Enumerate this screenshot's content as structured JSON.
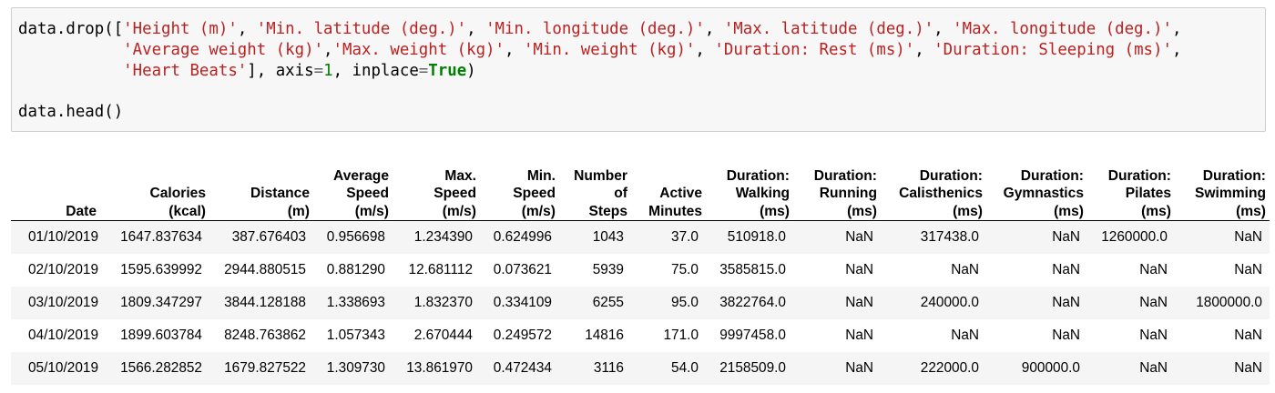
{
  "input_cell": {
    "code_lines": [
      [
        "data.drop([",
        "'Height (m)'",
        ", ",
        "'Min. latitude (deg.)'",
        ", ",
        "'Min. longitude (deg.)'",
        ", ",
        "'Max. latitude (deg.)'",
        ", ",
        "'Max. longitude (deg.)'",
        ","
      ],
      [
        "           ",
        "'Average weight (kg)'",
        ",",
        "'Max. weight (kg)'",
        ", ",
        "'Min. weight (kg)'",
        ", ",
        "'Duration: Rest (ms)'",
        ", ",
        "'Duration: Sleeping (ms)'",
        ","
      ],
      [
        "           ",
        "'Heart Beats'",
        "], axis",
        "=",
        "1",
        ", inplace",
        "=",
        "True",
        ")"
      ],
      [
        ""
      ],
      [
        "data.head()"
      ]
    ]
  },
  "output_table": {
    "columns": [
      [
        "Date"
      ],
      [
        "Calories",
        "(kcal)"
      ],
      [
        "Distance",
        "(m)"
      ],
      [
        "Average",
        "Speed",
        "(m/s)"
      ],
      [
        "Max.",
        "Speed",
        "(m/s)"
      ],
      [
        "Min.",
        "Speed",
        "(m/s)"
      ],
      [
        "Number",
        "of",
        "Steps"
      ],
      [
        "Active",
        "Minutes"
      ],
      [
        "Duration:",
        "Walking",
        "(ms)"
      ],
      [
        "Duration:",
        "Running",
        "(ms)"
      ],
      [
        "Duration:",
        "Calisthenics",
        "(ms)"
      ],
      [
        "Duration:",
        "Gymnastics",
        "(ms)"
      ],
      [
        "Duration:",
        "Pilates",
        "(ms)"
      ],
      [
        "Duration:",
        "Swimming",
        "(ms)"
      ]
    ],
    "rows": [
      [
        "01/10/2019",
        "1647.837634",
        "387.676403",
        "0.956698",
        "1.234390",
        "0.624996",
        "1043",
        "37.0",
        "510918.0",
        "NaN",
        "317438.0",
        "NaN",
        "1260000.0",
        "NaN"
      ],
      [
        "02/10/2019",
        "1595.639992",
        "2944.880515",
        "0.881290",
        "12.681112",
        "0.073621",
        "5939",
        "75.0",
        "3585815.0",
        "NaN",
        "NaN",
        "NaN",
        "NaN",
        "NaN"
      ],
      [
        "03/10/2019",
        "1809.347297",
        "3844.128188",
        "1.338693",
        "1.832370",
        "0.334109",
        "6255",
        "95.0",
        "3822764.0",
        "NaN",
        "240000.0",
        "NaN",
        "NaN",
        "1800000.0"
      ],
      [
        "04/10/2019",
        "1899.603784",
        "8248.763862",
        "1.057343",
        "2.670444",
        "0.249572",
        "14816",
        "171.0",
        "9997458.0",
        "NaN",
        "NaN",
        "NaN",
        "NaN",
        "NaN"
      ],
      [
        "05/10/2019",
        "1566.282852",
        "1679.827522",
        "1.309730",
        "13.861970",
        "0.472434",
        "3116",
        "54.0",
        "2158509.0",
        "NaN",
        "222000.0",
        "900000.0",
        "NaN",
        "NaN"
      ]
    ]
  }
}
